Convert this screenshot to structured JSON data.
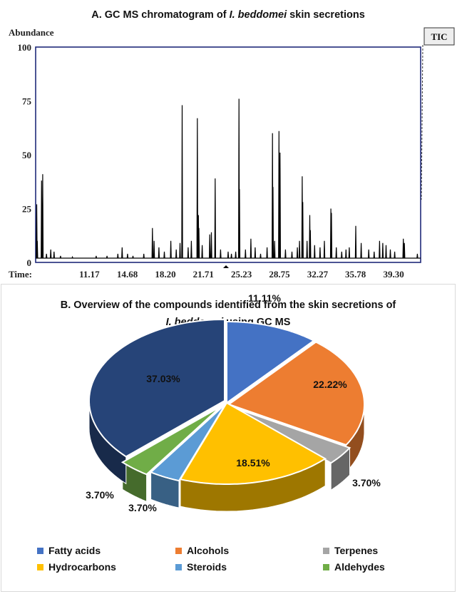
{
  "chart_data": [
    {
      "type": "line",
      "panel_title_parts": [
        "A. GC MS chromatogram of ",
        "I. beddomei",
        " skin secretions"
      ],
      "ylabel": "Abundance",
      "xlabel": "Time:",
      "ylim": [
        0,
        100
      ],
      "xlim": [
        6.2,
        41.8
      ],
      "y_ticks": [
        "100",
        "75",
        "50",
        "25",
        "0"
      ],
      "y_tick_values": [
        100,
        75,
        50,
        25,
        0
      ],
      "x_ticks": [
        "11.17",
        "14.68",
        "18.20",
        "21.71",
        "25.23",
        "28.75",
        "32.27",
        "35.78",
        "39.30"
      ],
      "x_tick_values": [
        11.17,
        14.68,
        18.2,
        21.71,
        25.23,
        28.75,
        32.27,
        35.78,
        39.3
      ],
      "legend_badge": "TIC",
      "baseline": 2,
      "series": [
        {
          "peaks": [
            [
              6.3,
              27
            ],
            [
              6.35,
              10
            ],
            [
              6.75,
              38
            ],
            [
              6.85,
              41
            ],
            [
              7.2,
              4
            ],
            [
              7.6,
              6
            ],
            [
              7.9,
              5
            ],
            [
              8.5,
              3
            ],
            [
              9.6,
              2.5
            ],
            [
              10.6,
              2
            ],
            [
              11.8,
              3
            ],
            [
              12.8,
              3
            ],
            [
              13.8,
              4
            ],
            [
              14.2,
              7
            ],
            [
              14.7,
              4
            ],
            [
              15.2,
              3
            ],
            [
              16.2,
              4
            ],
            [
              17.0,
              16
            ],
            [
              17.15,
              10
            ],
            [
              17.6,
              7
            ],
            [
              18.1,
              5
            ],
            [
              18.7,
              10
            ],
            [
              19.2,
              6
            ],
            [
              19.55,
              9
            ],
            [
              19.75,
              73
            ],
            [
              20.3,
              7
            ],
            [
              20.6,
              10
            ],
            [
              21.15,
              67
            ],
            [
              21.25,
              22
            ],
            [
              21.3,
              16
            ],
            [
              21.6,
              8
            ],
            [
              22.3,
              13
            ],
            [
              22.45,
              14
            ],
            [
              22.8,
              39
            ],
            [
              23.3,
              6
            ],
            [
              24.0,
              5
            ],
            [
              24.3,
              4
            ],
            [
              24.7,
              5
            ],
            [
              25.0,
              76
            ],
            [
              25.05,
              34
            ],
            [
              25.6,
              6
            ],
            [
              26.1,
              11
            ],
            [
              26.5,
              7
            ],
            [
              27.0,
              4
            ],
            [
              27.6,
              7
            ],
            [
              28.1,
              60
            ],
            [
              28.15,
              35
            ],
            [
              28.3,
              10
            ],
            [
              28.7,
              61
            ],
            [
              28.8,
              51
            ],
            [
              29.3,
              6
            ],
            [
              29.9,
              5
            ],
            [
              30.4,
              7
            ],
            [
              30.6,
              10
            ],
            [
              30.85,
              40
            ],
            [
              30.9,
              28
            ],
            [
              31.3,
              10
            ],
            [
              31.55,
              22
            ],
            [
              31.6,
              15
            ],
            [
              32.0,
              8
            ],
            [
              32.5,
              7
            ],
            [
              32.9,
              10
            ],
            [
              33.5,
              25
            ],
            [
              33.55,
              23
            ],
            [
              34.0,
              7
            ],
            [
              34.5,
              5
            ],
            [
              34.9,
              6
            ],
            [
              35.2,
              7
            ],
            [
              35.8,
              17
            ],
            [
              36.3,
              9
            ],
            [
              37.0,
              6
            ],
            [
              37.5,
              5
            ],
            [
              38.0,
              10
            ],
            [
              38.3,
              9
            ],
            [
              38.6,
              8
            ],
            [
              39.0,
              6
            ],
            [
              39.4,
              5
            ],
            [
              40.2,
              11
            ],
            [
              40.3,
              9
            ],
            [
              41.5,
              4
            ]
          ]
        }
      ]
    },
    {
      "type": "pie",
      "title_line1": "B. Overview of the compounds  identified from the skin secretions of",
      "title_line2_parts": [
        "I. beddomei",
        " using GC MS"
      ],
      "slices": [
        {
          "name": "Fatty acids",
          "value": 11.11,
          "label": "11.11%",
          "color": "#4472C4"
        },
        {
          "name": "Alcohols",
          "value": 22.22,
          "label": "22.22%",
          "color": "#ED7D31"
        },
        {
          "name": "Terpenes",
          "value": 3.7,
          "label": "3.70%",
          "color": "#A5A5A5"
        },
        {
          "name": "Hydrocarbons",
          "value": 18.51,
          "label": "18.51%",
          "color": "#FFC000"
        },
        {
          "name": "Steroids",
          "value": 3.7,
          "label": "3.70%",
          "color": "#5B9BD5"
        },
        {
          "name": "Aldehydes",
          "value": 3.7,
          "label": "3.70%",
          "color": "#70AD47"
        },
        {
          "name": "",
          "value": 37.03,
          "label": "37.03%",
          "color": "#264478"
        }
      ],
      "legend": [
        {
          "name": "Fatty acids",
          "color": "#4472C4"
        },
        {
          "name": "Alcohols",
          "color": "#ED7D31"
        },
        {
          "name": "Terpenes",
          "color": "#A5A5A5"
        },
        {
          "name": "Hydrocarbons",
          "color": "#FFC000"
        },
        {
          "name": "Steroids",
          "color": "#5B9BD5"
        },
        {
          "name": "Aldehydes",
          "color": "#70AD47"
        }
      ]
    }
  ]
}
